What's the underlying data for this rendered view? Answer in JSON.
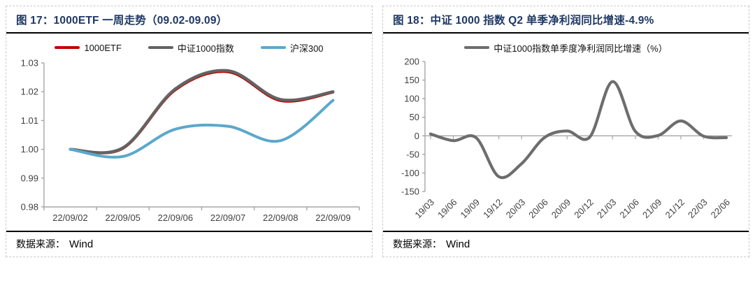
{
  "colors": {
    "title": "#1F3864",
    "rule": "#000000",
    "panel_border": "#c9c9c9",
    "axis": "#a6a6a6",
    "tick_text": "#404040",
    "red_line": "#C00000",
    "gray_line": "#636363",
    "blue_line": "#5BA8CC"
  },
  "panels": [
    {
      "title": "图 17：1000ETF 一周走势（09.02-09.09）",
      "source_label": "数据来源：",
      "source_value": "Wind"
    },
    {
      "title": "图 18：中证 1000 指数 Q2 单季净利润同比增速-4.9%",
      "source_label": "数据来源：",
      "source_value": "Wind"
    }
  ],
  "chart_data": [
    {
      "type": "line",
      "title": "1000ETF 一周走势（09.02-09.09）",
      "categories": [
        "22/09/02",
        "22/09/05",
        "22/09/06",
        "22/09/07",
        "22/09/08",
        "22/09/09"
      ],
      "series": [
        {
          "name": "1000ETF",
          "color": "#C00000",
          "width": 3,
          "values": [
            1.0,
            1.0002,
            1.0205,
            1.0268,
            1.0168,
            1.0197
          ]
        },
        {
          "name": "中证1000指数",
          "color": "#636363",
          "width": 4.2,
          "values": [
            1.0,
            1.0005,
            1.021,
            1.0273,
            1.0173,
            1.02
          ]
        },
        {
          "name": "沪深300",
          "color": "#5BA8CC",
          "width": 4,
          "values": [
            1.0,
            0.9975,
            1.007,
            1.008,
            1.003,
            1.017
          ]
        }
      ],
      "ylim": [
        0.98,
        1.03
      ],
      "yticks": [
        1.03,
        1.02,
        1.01,
        1.0,
        0.99,
        0.98
      ],
      "ytick_labels": [
        "1.03",
        "1.02",
        "1.01",
        "1.00",
        "0.99",
        "0.98"
      ],
      "xlabel": "",
      "ylabel": "",
      "legend_position": "top",
      "grid": false,
      "smooth": true,
      "x_axis_mode": "band"
    },
    {
      "type": "line",
      "title": "中证 1000 指数 Q2 单季净利润同比增速-4.9%",
      "categories": [
        "19/03",
        "19/06",
        "19/09",
        "19/12",
        "20/03",
        "20/06",
        "20/09",
        "20/12",
        "21/03",
        "21/06",
        "21/09",
        "21/12",
        "22/03",
        "22/06"
      ],
      "series": [
        {
          "name": "中证1000指数单季度净利润同比增速（%）",
          "color": "#6D6D6D",
          "width": 4.2,
          "values": [
            5,
            -13,
            -5,
            -110,
            -75,
            -5,
            13,
            -3,
            146,
            12,
            1,
            40,
            -1,
            -4.9
          ]
        }
      ],
      "ylim": [
        -150,
        200
      ],
      "yticks": [
        200,
        150,
        100,
        50,
        0,
        -50,
        -100,
        -150
      ],
      "ytick_labels": [
        "200",
        "150",
        "100",
        "50",
        "0",
        "-50",
        "-100",
        "-150"
      ],
      "xlabel": "",
      "ylabel": "",
      "legend_position": "top",
      "grid": false,
      "smooth": true,
      "x_axis_mode": "point",
      "x_label_rotation": -45,
      "axis_cross_at_zero": true
    }
  ]
}
